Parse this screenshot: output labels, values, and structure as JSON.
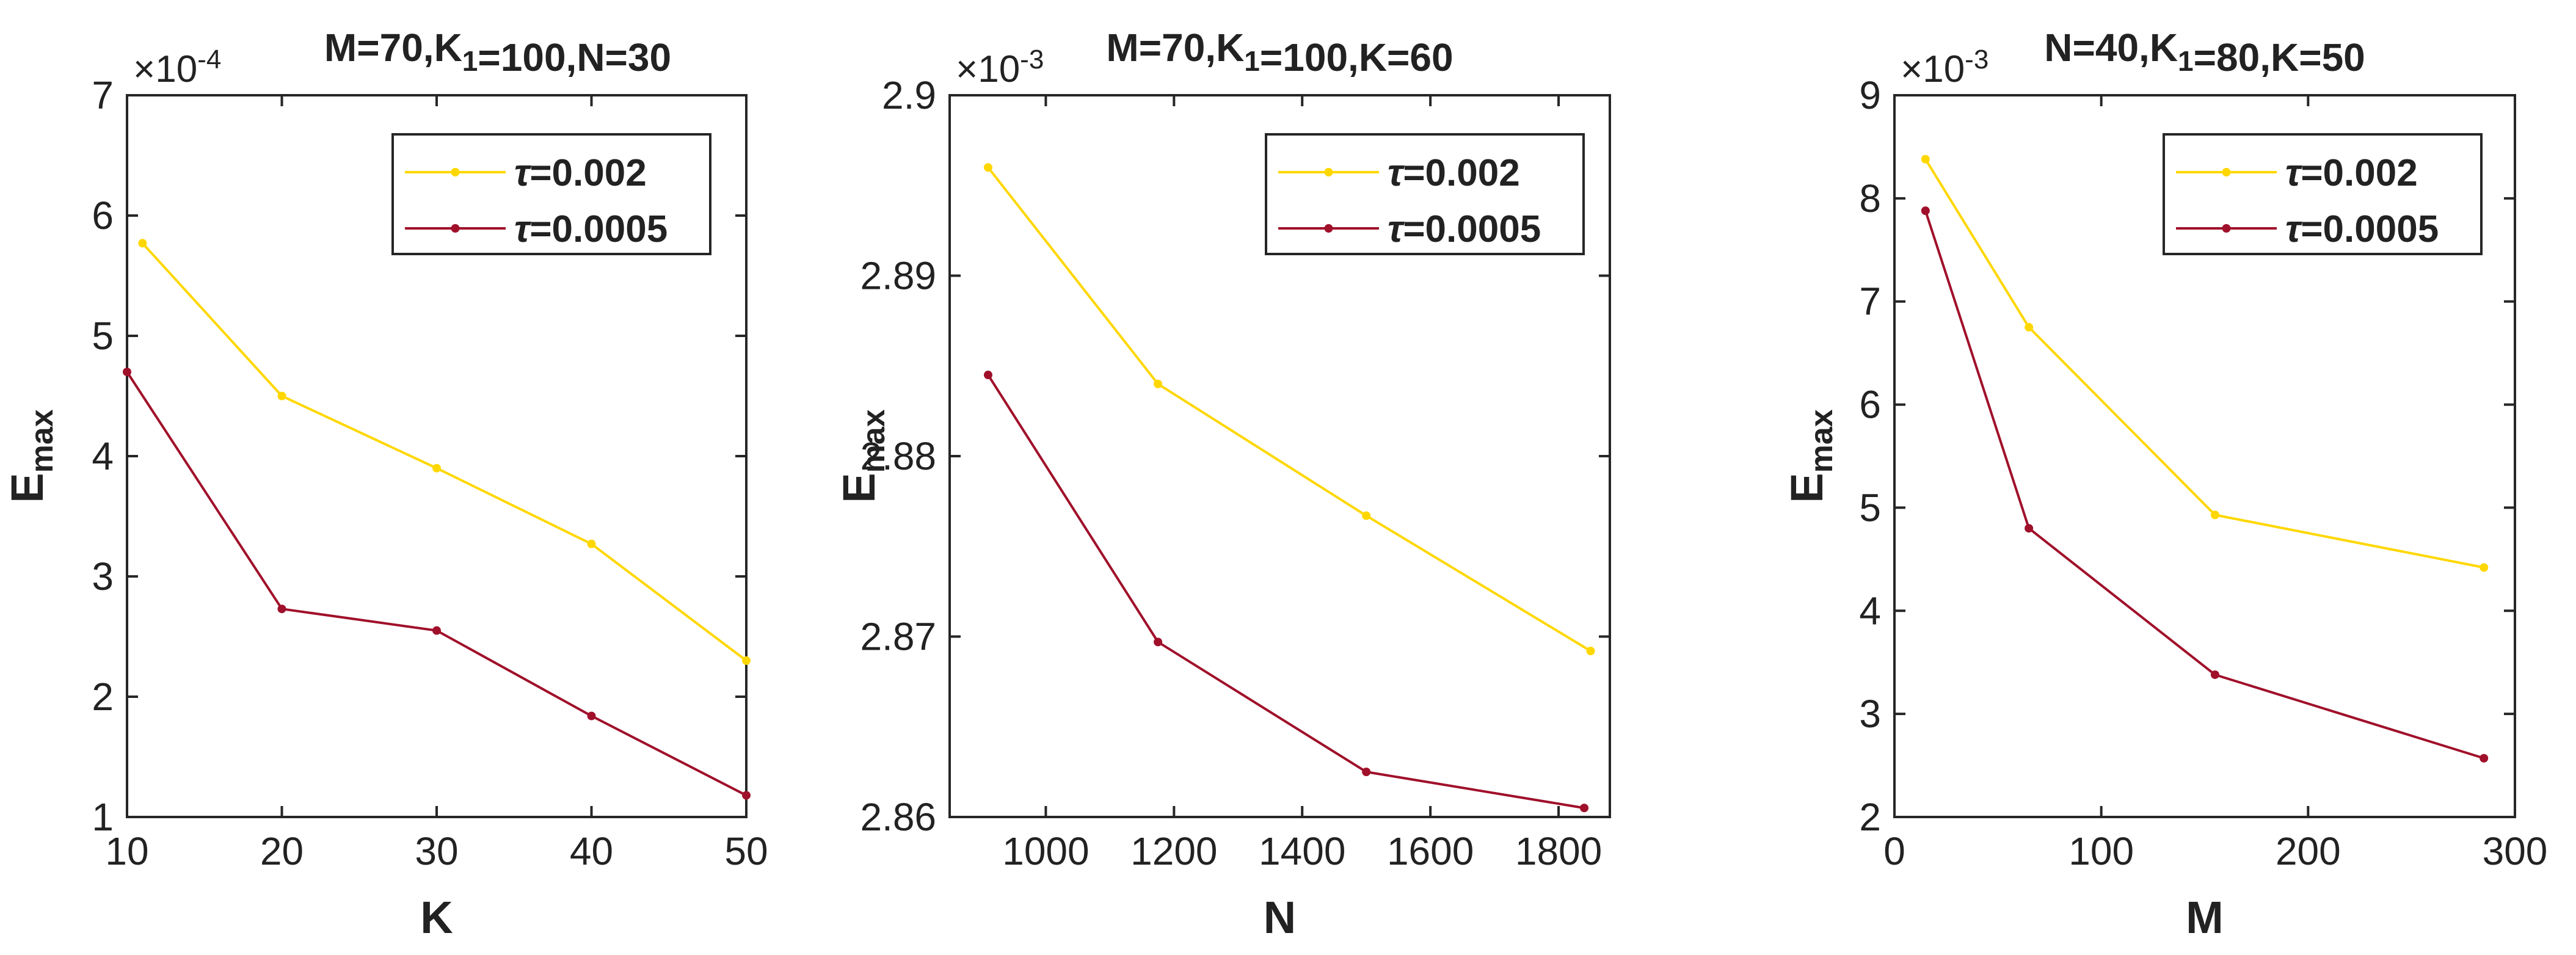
{
  "chart_data": [
    {
      "type": "line",
      "title": "M=70,K_1=100,N=30",
      "xlabel": "K",
      "ylabel": "E_max",
      "exponent": "×10^-4",
      "xlim": [
        10,
        50
      ],
      "ylim": [
        1,
        7
      ],
      "xticks": [
        10,
        20,
        30,
        40,
        50
      ],
      "xtick_labels": [
        "10",
        "20",
        "30",
        "40",
        "50"
      ],
      "yticks": [
        1,
        2,
        3,
        4,
        5,
        6,
        7
      ],
      "ytick_labels": [
        "1",
        "2",
        "3",
        "4",
        "5",
        "6",
        "7"
      ],
      "grid": false,
      "legend_position": "top-right",
      "series": [
        {
          "name": "τ=0.002",
          "color": "#FFD700",
          "x": [
            11,
            20,
            30,
            40,
            50
          ],
          "y": [
            5.77,
            4.5,
            3.9,
            3.27,
            2.3
          ]
        },
        {
          "name": "τ=0.0005",
          "color": "#A0102A",
          "x": [
            10,
            20,
            30,
            40,
            50
          ],
          "y": [
            4.7,
            2.73,
            2.55,
            1.84,
            1.18
          ]
        }
      ]
    },
    {
      "type": "line",
      "title": "M=70,K_1=100,K=60",
      "xlabel": "N",
      "ylabel": "E_max",
      "exponent": "×10^-3",
      "xlim": [
        850,
        1880
      ],
      "ylim": [
        2.86,
        2.9
      ],
      "xticks": [
        1000,
        1200,
        1400,
        1600,
        1800
      ],
      "xtick_labels": [
        "1000",
        "1200",
        "1400",
        "1600",
        "1800"
      ],
      "yticks": [
        2.86,
        2.87,
        2.88,
        2.89,
        2.9
      ],
      "ytick_labels": [
        "2.86",
        "2.87",
        "2.88",
        "2.89",
        "2.9"
      ],
      "grid": false,
      "legend_position": "top-right",
      "series": [
        {
          "name": "τ=0.002",
          "color": "#FFD700",
          "x": [
            910,
            1175,
            1500,
            1850
          ],
          "y": [
            2.896,
            2.884,
            2.8767,
            2.8692
          ]
        },
        {
          "name": "τ=0.0005",
          "color": "#A0102A",
          "x": [
            910,
            1175,
            1500,
            1840
          ],
          "y": [
            2.8845,
            2.8697,
            2.8625,
            2.8605
          ]
        }
      ]
    },
    {
      "type": "line",
      "title": "N=40,K_1=80,K=50",
      "xlabel": "M",
      "ylabel": "E_max",
      "exponent": "×10^-3",
      "xlim": [
        0,
        300
      ],
      "ylim": [
        2,
        9
      ],
      "xticks": [
        0,
        100,
        200,
        300
      ],
      "xtick_labels": [
        "0",
        "100",
        "200",
        "300"
      ],
      "yticks": [
        2,
        3,
        4,
        5,
        6,
        7,
        8,
        9
      ],
      "ytick_labels": [
        "2",
        "3",
        "4",
        "5",
        "6",
        "7",
        "8",
        "9"
      ],
      "grid": false,
      "legend_position": "top-right",
      "series": [
        {
          "name": "τ=0.002",
          "color": "#FFD700",
          "x": [
            15,
            65,
            155,
            285
          ],
          "y": [
            8.38,
            6.75,
            4.93,
            4.42
          ]
        },
        {
          "name": "τ=0.0005",
          "color": "#A0102A",
          "x": [
            15,
            65,
            155,
            285
          ],
          "y": [
            7.88,
            4.8,
            3.38,
            2.57
          ]
        }
      ]
    }
  ]
}
